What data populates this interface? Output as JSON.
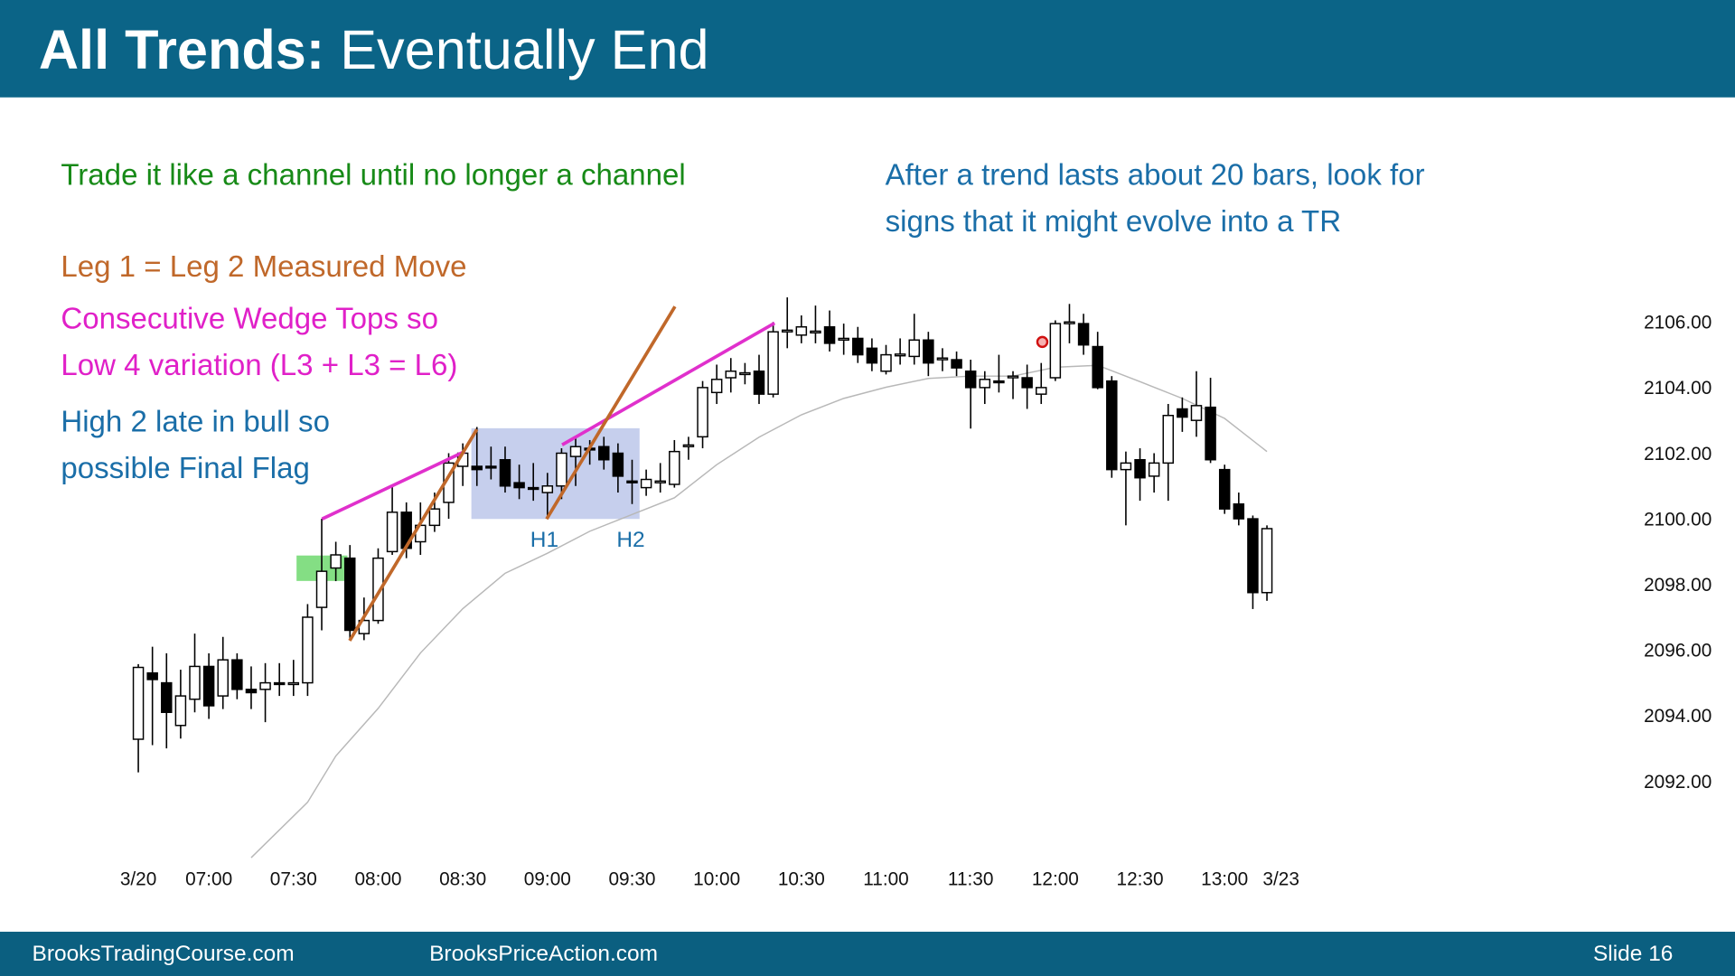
{
  "header": {
    "title_bold": "All Trends:",
    "title_rest": "Eventually End"
  },
  "footer": {
    "left": "BrooksTradingCourse.com",
    "center": "BrooksPriceAction.com",
    "slide": "Slide 16"
  },
  "chart_data": {
    "type": "candlestick",
    "annotations": [
      "Trade it like a channel until no longer a channel",
      "After a trend lasts about 20 bars, look for",
      "signs that it might evolve into a TR",
      "Leg 1 = Leg 2 Measured Move",
      "Consecutive Wedge Tops so",
      "Low 4 variation (L3 + L3 = L6)",
      "High 2 late in bull so",
      "possible Final Flag",
      "H1",
      "H2"
    ],
    "categories": [
      "3/20",
      null,
      null,
      null,
      null,
      "07:00",
      null,
      null,
      null,
      null,
      null,
      "07:30",
      null,
      null,
      null,
      null,
      null,
      "08:00",
      null,
      null,
      null,
      null,
      null,
      "08:30",
      null,
      null,
      null,
      null,
      null,
      "09:00",
      null,
      null,
      null,
      null,
      null,
      "09:30",
      null,
      null,
      null,
      null,
      null,
      "10:00",
      null,
      null,
      null,
      null,
      null,
      "10:30",
      null,
      null,
      null,
      null,
      null,
      "11:00",
      null,
      null,
      null,
      null,
      null,
      "11:30",
      null,
      null,
      null,
      null,
      null,
      "12:00",
      null,
      null,
      null,
      null,
      null,
      "12:30",
      null,
      null,
      null,
      null,
      null,
      "13:00",
      null,
      null,
      null,
      "3/23"
    ],
    "open": [
      2093.28,
      2095.3,
      2095.0,
      2093.7,
      2094.5,
      2095.5,
      2094.6,
      2095.7,
      2094.8,
      2094.8,
      2095.0,
      2094.95,
      2095.0,
      2097.3,
      2098.5,
      2098.8,
      2096.5,
      2096.9,
      2099.0,
      2100.2,
      2099.3,
      2099.8,
      2100.5,
      2101.6,
      2101.6,
      2101.6,
      2101.8,
      2101.1,
      2100.95,
      2100.8,
      2101.0,
      2101.9,
      2102.15,
      2102.2,
      2102.0,
      2101.15,
      2100.95,
      2101.1,
      2101.05,
      2102.2,
      2102.5,
      2103.85,
      2104.3,
      2104.4,
      2104.5,
      2103.8,
      2105.7,
      2105.6,
      2105.7,
      2105.85,
      2105.45,
      2105.5,
      2105.2,
      2104.5,
      2105.0,
      2104.95,
      2105.45,
      2104.85,
      2104.85,
      2104.5,
      2104.0,
      2104.2,
      2104.3,
      2104.3,
      2103.8,
      2104.3,
      2105.95,
      2105.95,
      2105.25,
      2104.2,
      2101.5,
      2101.8,
      2101.3,
      2101.7,
      2103.35,
      2103.0,
      2103.4,
      2101.5,
      2100.45,
      2100.0,
      2097.75,
      null
    ],
    "high": [
      2095.57,
      2096.1,
      2095.9,
      2095.4,
      2096.5,
      2095.9,
      2096.4,
      2095.9,
      2095.5,
      2095.6,
      2095.6,
      2095.7,
      2097.4,
      2100.0,
      2099.3,
      2099.2,
      2097.6,
      2099.1,
      2101.0,
      2100.5,
      2100.5,
      2100.8,
      2102.0,
      2102.3,
      2102.8,
      2102.2,
      2102.2,
      2101.65,
      2101.7,
      2101.4,
      2102.15,
      2102.5,
      2102.4,
      2102.5,
      2102.3,
      2101.8,
      2101.5,
      2101.7,
      2102.4,
      2102.5,
      2104.2,
      2104.7,
      2104.9,
      2104.75,
      2105.0,
      2106.0,
      2106.75,
      2106.2,
      2106.5,
      2106.35,
      2105.95,
      2105.85,
      2105.5,
      2105.3,
      2105.5,
      2106.25,
      2105.7,
      2105.2,
      2105.1,
      2104.85,
      2104.5,
      2105.0,
      2104.5,
      2104.7,
      2104.75,
      2106.05,
      2106.55,
      2106.25,
      2105.7,
      2104.35,
      2102.05,
      2102.15,
      2102.0,
      2103.5,
      2103.7,
      2104.5,
      2104.3,
      2101.65,
      2100.8,
      2100.1,
      2099.8,
      null
    ],
    "low": [
      2092.27,
      2093.1,
      2093.0,
      2093.3,
      2094.1,
      2093.9,
      2094.2,
      2094.5,
      2094.2,
      2093.8,
      2094.6,
      2094.6,
      2094.6,
      2096.6,
      2098.1,
      2096.3,
      2096.3,
      2096.8,
      2098.9,
      2098.8,
      2098.9,
      2099.6,
      2100.0,
      2101.0,
      2101.0,
      2101.2,
      2100.8,
      2100.6,
      2100.55,
      2100.0,
      2100.6,
      2101.0,
      2101.65,
      2101.5,
      2100.8,
      2100.45,
      2100.7,
      2100.8,
      2100.95,
      2101.8,
      2102.15,
      2103.5,
      2103.85,
      2104.1,
      2103.5,
      2103.7,
      2105.2,
      2105.35,
      2105.35,
      2105.1,
      2105.0,
      2104.75,
      2104.5,
      2104.4,
      2104.7,
      2104.7,
      2104.35,
      2104.5,
      2104.35,
      2102.75,
      2103.5,
      2103.85,
      2103.65,
      2103.35,
      2103.5,
      2104.2,
      2105.35,
      2105.0,
      2103.95,
      2101.25,
      2099.8,
      2100.55,
      2100.8,
      2100.55,
      2102.65,
      2102.5,
      2101.7,
      2100.15,
      2099.8,
      2097.25,
      2097.5,
      null
    ],
    "close": [
      2095.47,
      2095.1,
      2094.1,
      2094.6,
      2095.5,
      2094.3,
      2095.7,
      2094.8,
      2094.7,
      2095.0,
      2094.95,
      2095.0,
      2097.0,
      2098.4,
      2098.9,
      2096.6,
      2096.9,
      2098.8,
      2100.2,
      2099.1,
      2099.8,
      2100.3,
      2101.7,
      2102.0,
      2101.5,
      2101.55,
      2101.0,
      2100.95,
      2100.9,
      2101.0,
      2102.0,
      2102.2,
      2102.1,
      2101.8,
      2101.3,
      2101.1,
      2101.2,
      2101.15,
      2102.05,
      2102.25,
      2104.0,
      2104.25,
      2104.5,
      2104.45,
      2103.8,
      2105.7,
      2105.75,
      2105.85,
      2105.72,
      2105.35,
      2105.5,
      2105.0,
      2104.75,
      2105.0,
      2105.02,
      2105.45,
      2104.75,
      2104.9,
      2104.6,
      2104.0,
      2104.25,
      2104.15,
      2104.35,
      2104.0,
      2104.0,
      2105.95,
      2106.0,
      2105.3,
      2104.0,
      2101.5,
      2101.7,
      2101.25,
      2101.7,
      2103.15,
      2103.1,
      2103.45,
      2101.8,
      2100.3,
      2100.0,
      2097.75,
      2099.7,
      null
    ],
    "up_color": "#ffffff",
    "down_color": "#000000",
    "moving_average": {
      "color": "#b8b8b8",
      "x": [
        8,
        12,
        14,
        17,
        20,
        23,
        26,
        29,
        32,
        35,
        38,
        41,
        44,
        47,
        50,
        53,
        56,
        59,
        62,
        65,
        68,
        71,
        74,
        77,
        80
      ],
      "values": [
        2089.67,
        2091.36,
        2092.77,
        2094.22,
        2095.91,
        2097.26,
        2098.34,
        2098.95,
        2099.62,
        2100.13,
        2100.64,
        2101.65,
        2102.49,
        2103.17,
        2103.67,
        2104.01,
        2104.28,
        2104.35,
        2104.35,
        2104.62,
        2104.68,
        2104.18,
        2103.67,
        2103.06,
        2102.05
      ]
    },
    "ylim": [
      2089.5,
      2107.5
    ],
    "yticks": [
      {
        "value": 2092,
        "label": "2092.00"
      },
      {
        "value": 2094,
        "label": "2094.00"
      },
      {
        "value": 2096,
        "label": "2096.00"
      },
      {
        "value": 2098,
        "label": "2098.00"
      },
      {
        "value": 2100,
        "label": "2100.00"
      },
      {
        "value": 2102,
        "label": "2102.00"
      },
      {
        "value": 2104,
        "label": "2104.00"
      },
      {
        "value": 2106,
        "label": "2106.00"
      }
    ]
  }
}
